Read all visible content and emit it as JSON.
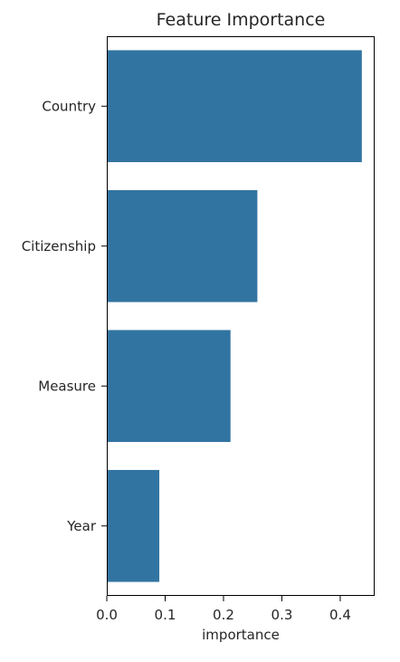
{
  "chart_data": {
    "type": "bar",
    "orientation": "horizontal",
    "title": "Feature Importance",
    "xlabel": "importance",
    "ylabel": "",
    "categories": [
      "Country",
      "Citizenship",
      "Measure",
      "Year"
    ],
    "values": [
      0.437,
      0.258,
      0.212,
      0.09
    ],
    "xlim": [
      0.0,
      0.459
    ],
    "xticks": [
      0.0,
      0.1,
      0.2,
      0.3,
      0.4
    ],
    "xtick_labels": [
      "0.0",
      "0.1",
      "0.2",
      "0.3",
      "0.4"
    ],
    "grid": false,
    "legend": "none",
    "bar_color": "#3274a1"
  }
}
